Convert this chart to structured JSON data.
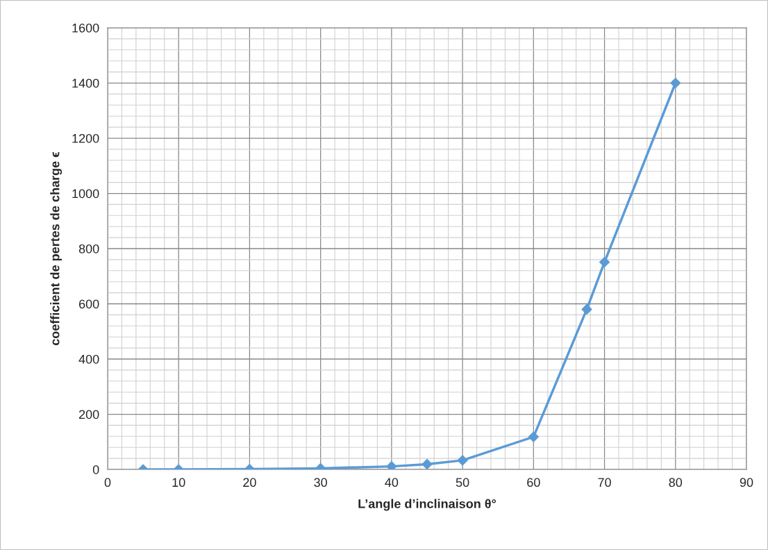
{
  "chart_data": {
    "type": "line",
    "xlabel": "L’angle d’inclinaison θ°",
    "ylabel": "coefficient de pertes de charge ϵ",
    "x": [
      5,
      10,
      20,
      30,
      40,
      45,
      50,
      60,
      67.5,
      70,
      80
    ],
    "series": [
      {
        "color": "#5b9bd5",
        "values": [
          0,
          0,
          1,
          4,
          11,
          19,
          33,
          118,
          580,
          751,
          1400
        ]
      }
    ],
    "xlim": [
      0,
      90
    ],
    "xticks": [
      0,
      10,
      20,
      30,
      40,
      50,
      60,
      70,
      80,
      90
    ],
    "ylim": [
      0,
      1600
    ],
    "yticks": [
      0,
      200,
      400,
      600,
      800,
      1000,
      1200,
      1400,
      1600
    ],
    "grid": true,
    "marker": "diamond",
    "line_style": "solid",
    "legend": false
  }
}
